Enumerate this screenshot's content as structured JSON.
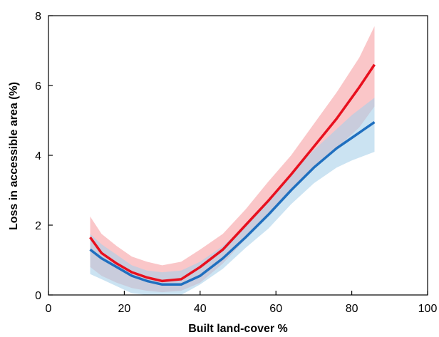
{
  "chart_data": {
    "type": "line",
    "xlabel": "Built land-cover %",
    "ylabel": "Loss in accessible area (%)",
    "xlim": [
      0,
      100
    ],
    "ylim": [
      0,
      8
    ],
    "xticks": [
      0,
      20,
      40,
      60,
      80,
      100
    ],
    "yticks": [
      0,
      2,
      4,
      6,
      8
    ],
    "grid": false,
    "series": [
      {
        "color": "#e8101e",
        "band_color": "#f7a0a4",
        "x": [
          11,
          14,
          18,
          22,
          26,
          30,
          35,
          40,
          46,
          52,
          58,
          64,
          70,
          76,
          82,
          86
        ],
        "y": [
          1.65,
          1.2,
          0.9,
          0.65,
          0.5,
          0.4,
          0.45,
          0.8,
          1.3,
          2.0,
          2.7,
          3.45,
          4.25,
          5.05,
          5.95,
          6.6
        ],
        "lower": [
          0.8,
          0.55,
          0.35,
          0.2,
          0.12,
          0.08,
          0.12,
          0.35,
          0.9,
          1.6,
          2.25,
          2.95,
          3.6,
          4.2,
          4.8,
          5.4
        ],
        "upper": [
          2.25,
          1.75,
          1.4,
          1.1,
          0.95,
          0.85,
          0.95,
          1.3,
          1.75,
          2.45,
          3.25,
          4.0,
          4.9,
          5.8,
          6.8,
          7.7
        ]
      },
      {
        "color": "#1f6fbf",
        "band_color": "#a8d0ea",
        "x": [
          11,
          14,
          18,
          22,
          26,
          30,
          35,
          40,
          46,
          52,
          58,
          64,
          70,
          76,
          80,
          86
        ],
        "y": [
          1.3,
          1.05,
          0.8,
          0.55,
          0.4,
          0.3,
          0.3,
          0.55,
          1.05,
          1.65,
          2.3,
          3.0,
          3.65,
          4.2,
          4.5,
          4.95
        ],
        "lower": [
          0.6,
          0.45,
          0.25,
          0.05,
          0.0,
          0.0,
          0.0,
          0.3,
          0.75,
          1.35,
          1.9,
          2.6,
          3.2,
          3.65,
          3.85,
          4.1
        ],
        "upper": [
          1.75,
          1.45,
          1.15,
          0.85,
          0.7,
          0.65,
          0.7,
          0.95,
          1.4,
          2.0,
          2.75,
          3.5,
          4.15,
          4.75,
          5.15,
          5.65
        ]
      }
    ]
  }
}
